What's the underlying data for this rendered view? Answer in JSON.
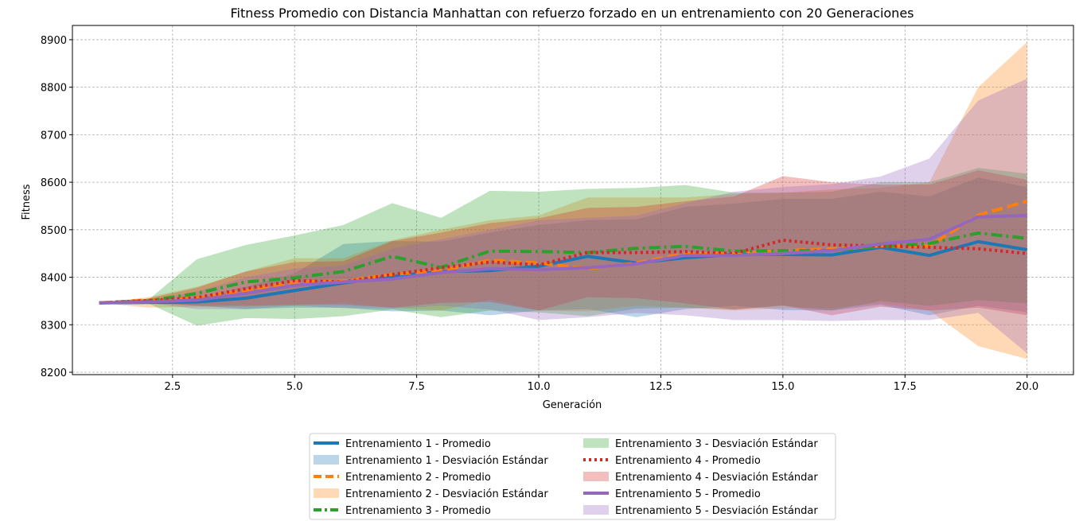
{
  "chart_data": {
    "type": "line",
    "title": "Fitness Promedio con Distancia Manhattan con refuerzo forzado en un entrenamiento con 20 Generaciones",
    "xlabel": "Generación",
    "ylabel": "Fitness",
    "xlim": [
      0.45,
      20.95
    ],
    "ylim": [
      8195,
      8930
    ],
    "xticks": [
      2.5,
      5.0,
      7.5,
      10.0,
      12.5,
      15.0,
      17.5,
      20.0
    ],
    "xtick_labels": [
      "2.5",
      "5.0",
      "7.5",
      "10.0",
      "12.5",
      "15.0",
      "17.5",
      "20.0"
    ],
    "yticks": [
      8200,
      8300,
      8400,
      8500,
      8600,
      8700,
      8800,
      8900
    ],
    "ytick_labels": [
      "8200",
      "8300",
      "8400",
      "8500",
      "8600",
      "8700",
      "8800",
      "8900"
    ],
    "grid": true,
    "legend_position": "bottom-center",
    "x": [
      1,
      2,
      3,
      4,
      5,
      6,
      7,
      8,
      9,
      10,
      11,
      12,
      13,
      14,
      15,
      16,
      17,
      18,
      19,
      20
    ],
    "series": [
      {
        "name": "Entrenamiento 1 - Promedio",
        "band_name": "Entrenamiento 1 - Desviación Estándar",
        "color": "#1f77b4",
        "dash": "solid",
        "values": [
          8346,
          8347,
          8348,
          8356,
          8372,
          8388,
          8402,
          8412,
          8414,
          8423,
          8444,
          8430,
          8441,
          8448,
          8448,
          8447,
          8463,
          8446,
          8475,
          8458
        ],
        "upper": [
          8346,
          8349,
          8356,
          8380,
          8408,
          8470,
          8476,
          8475,
          8494,
          8510,
          8520,
          8522,
          8548,
          8555,
          8565,
          8565,
          8580,
          8570,
          8610,
          8590
        ],
        "lower": [
          8346,
          8345,
          8340,
          8333,
          8336,
          8336,
          8328,
          8330,
          8320,
          8330,
          8333,
          8316,
          8333,
          8340,
          8331,
          8330,
          8342,
          8320,
          8340,
          8326
        ]
      },
      {
        "name": "Entrenamiento 2 - Promedio",
        "band_name": "Entrenamiento 2 - Desviación Estándar",
        "color": "#ff7f0e",
        "dash": "dashed",
        "values": [
          8346,
          8352,
          8357,
          8372,
          8390,
          8392,
          8406,
          8414,
          8436,
          8430,
          8418,
          8430,
          8450,
          8450,
          8456,
          8460,
          8466,
          8466,
          8531,
          8560
        ],
        "upper": [
          8346,
          8358,
          8380,
          8412,
          8440,
          8440,
          8478,
          8500,
          8520,
          8530,
          8568,
          8568,
          8568,
          8575,
          8578,
          8585,
          8588,
          8600,
          8800,
          8895
        ],
        "lower": [
          8346,
          8336,
          8338,
          8338,
          8341,
          8346,
          8336,
          8330,
          8353,
          8330,
          8328,
          8340,
          8336,
          8330,
          8335,
          8335,
          8345,
          8330,
          8255,
          8228
        ]
      },
      {
        "name": "Entrenamiento 3 - Promedio",
        "band_name": "Entrenamiento 3 - Desviación Estándar",
        "color": "#2ca02c",
        "dash": "dashdot",
        "values": [
          8346,
          8350,
          8366,
          8390,
          8399,
          8412,
          8444,
          8421,
          8455,
          8454,
          8452,
          8461,
          8465,
          8455,
          8456,
          8456,
          8465,
          8471,
          8493,
          8482
        ],
        "upper": [
          8346,
          8352,
          8438,
          8468,
          8488,
          8510,
          8556,
          8525,
          8582,
          8580,
          8586,
          8588,
          8594,
          8578,
          8578,
          8580,
          8600,
          8600,
          8630,
          8618
        ],
        "lower": [
          8346,
          8345,
          8298,
          8314,
          8312,
          8318,
          8332,
          8316,
          8330,
          8326,
          8318,
          8334,
          8336,
          8332,
          8340,
          8330,
          8350,
          8340,
          8352,
          8345
        ]
      },
      {
        "name": "Entrenamiento 4 - Promedio",
        "band_name": "Entrenamiento 4 - Desviación Estándar",
        "color": "#d62728",
        "dash": "dotted",
        "values": [
          8346,
          8351,
          8357,
          8376,
          8393,
          8390,
          8406,
          8420,
          8432,
          8426,
          8452,
          8452,
          8454,
          8450,
          8478,
          8468,
          8466,
          8463,
          8460,
          8450
        ],
        "upper": [
          8346,
          8355,
          8378,
          8412,
          8432,
          8434,
          8476,
          8494,
          8514,
          8524,
          8546,
          8548,
          8560,
          8570,
          8613,
          8600,
          8595,
          8595,
          8625,
          8605
        ],
        "lower": [
          8346,
          8347,
          8340,
          8340,
          8342,
          8342,
          8336,
          8346,
          8348,
          8330,
          8358,
          8356,
          8345,
          8332,
          8341,
          8320,
          8338,
          8330,
          8336,
          8320
        ]
      },
      {
        "name": "Entrenamiento 5 - Promedio",
        "band_name": "Entrenamiento 5 - Desviación Estándar",
        "color": "#9467bd",
        "dash": "solid",
        "values": [
          8346,
          8348,
          8352,
          8366,
          8383,
          8390,
          8396,
          8410,
          8418,
          8416,
          8420,
          8428,
          8446,
          8446,
          8450,
          8456,
          8470,
          8480,
          8527,
          8530
        ],
        "upper": [
          8346,
          8350,
          8370,
          8400,
          8418,
          8425,
          8460,
          8480,
          8500,
          8520,
          8525,
          8530,
          8556,
          8580,
          8590,
          8596,
          8612,
          8650,
          8772,
          8818
        ],
        "lower": [
          8346,
          8346,
          8333,
          8333,
          8340,
          8335,
          8334,
          8340,
          8332,
          8310,
          8316,
          8325,
          8320,
          8310,
          8310,
          8308,
          8310,
          8310,
          8325,
          8240
        ]
      }
    ]
  }
}
